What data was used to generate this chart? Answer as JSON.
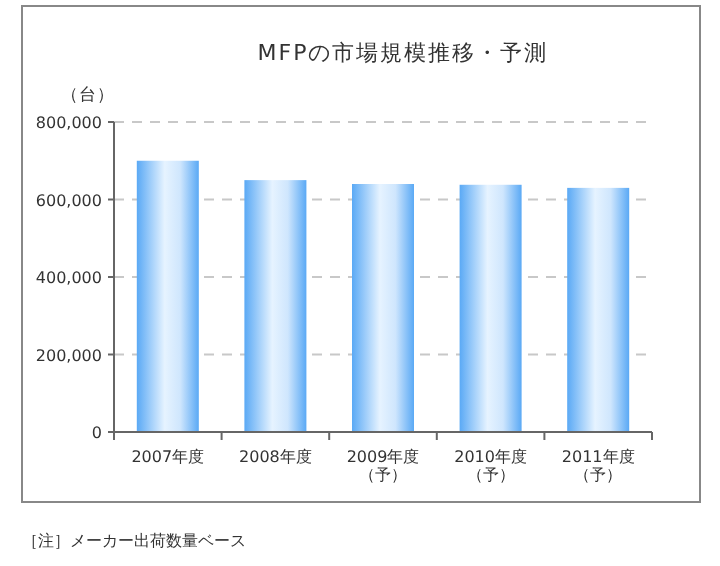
{
  "chart_data": {
    "type": "bar",
    "title": "MFPの市場規模推移・予測",
    "ylabel": "（台）",
    "categories": [
      "2007年度",
      "2008年度",
      "2009年度（予）",
      "2010年度（予）",
      "2011年度（予）"
    ],
    "values": [
      700000,
      650000,
      640000,
      638000,
      630000
    ],
    "color": "#5aa9f5",
    "ylim": [
      0,
      800000
    ],
    "yticks": [
      {
        "value": 0,
        "label": "0"
      },
      {
        "value": 200000,
        "label": "200,000"
      },
      {
        "value": 400000,
        "label": "400,000"
      },
      {
        "value": 600000,
        "label": "600,000"
      },
      {
        "value": 800000,
        "label": "800,000"
      }
    ],
    "grid": "y",
    "annotations": [
      "［注］メーカー出荷数量ベース"
    ]
  }
}
